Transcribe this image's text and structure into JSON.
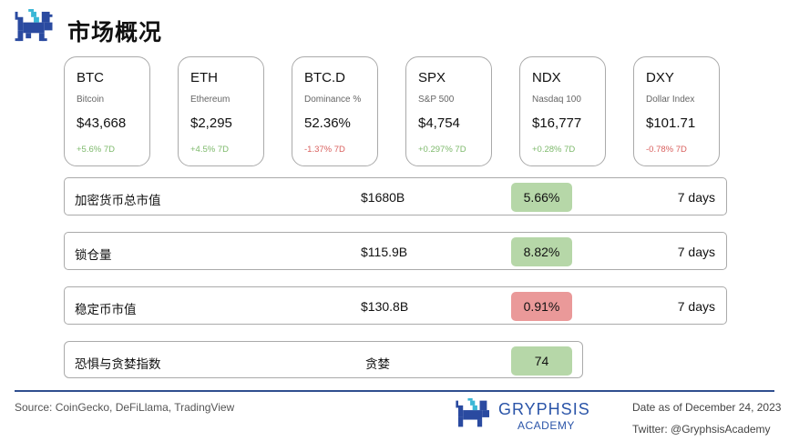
{
  "header": {
    "title": "市场概况"
  },
  "tickers": [
    {
      "symbol": "BTC",
      "name": "Bitcoin",
      "price": "$43,668",
      "change": "+5.6% 7D",
      "direction": "up"
    },
    {
      "symbol": "ETH",
      "name": "Ethereum",
      "price": "$2,295",
      "change": "+4.5% 7D",
      "direction": "up"
    },
    {
      "symbol": "BTC.D",
      "name": "Dominance %",
      "price": "52.36%",
      "change": "-1.37% 7D",
      "direction": "down"
    },
    {
      "symbol": "SPX",
      "name": "S&P 500",
      "price": "$4,754",
      "change": "+0.297% 7D",
      "direction": "up"
    },
    {
      "symbol": "NDX",
      "name": "Nasdaq 100",
      "price": "$16,777",
      "change": "+0.28% 7D",
      "direction": "up"
    },
    {
      "symbol": "DXY",
      "name": "Dollar Index",
      "price": "$101.71",
      "change": "-0.78% 7D",
      "direction": "down"
    }
  ],
  "metrics": [
    {
      "label": "加密货币总市值",
      "value": "$1680B",
      "change": "5.66%",
      "status": "up",
      "period": "7 days"
    },
    {
      "label": "锁仓量",
      "value": "$115.9B",
      "change": "8.82%",
      "status": "up",
      "period": "7 days"
    },
    {
      "label": "稳定币市值",
      "value": "$130.8B",
      "change": "0.91%",
      "status": "down",
      "period": "7 days"
    },
    {
      "label": "恐惧与贪婪指数",
      "value": "贪婪",
      "change": "74",
      "status": "up"
    }
  ],
  "colors": {
    "up": "#7db96b",
    "down": "#d9605e",
    "pill_up": "#b6d7a8",
    "pill_down": "#ea9999",
    "brand": "#2a54a8"
  },
  "footer": {
    "source": "Source: CoinGecko, DeFiLlama, TradingView",
    "brand_name": "GRYPHSIS",
    "brand_sub": "ACADEMY",
    "date": "Date as of December 24, 2023",
    "twitter": "Twitter: @GryphsisAcademy"
  }
}
